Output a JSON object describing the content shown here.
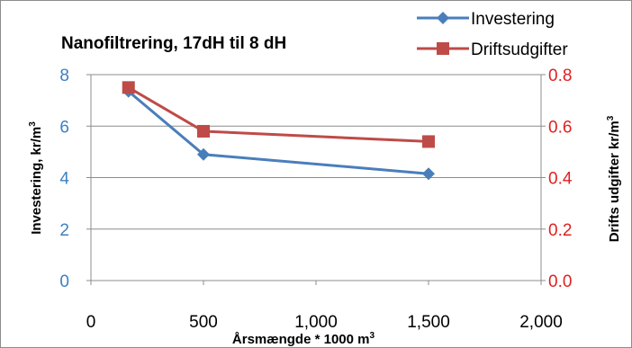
{
  "chart_data": {
    "type": "line",
    "title": "Nanofiltrering,  17dH til 8 dH",
    "xlabel": "Årsmængde * 1000 m",
    "xlabel_sup": "3",
    "ylabel_left": "Investering, kr/m",
    "ylabel_left_sup": "3",
    "ylabel_right": "Drifts udgifter kr/m",
    "ylabel_right_sup": "3",
    "xlim": [
      0,
      2000
    ],
    "ylim_left": [
      0,
      8
    ],
    "ylim_right": [
      0,
      0.8
    ],
    "xticks": [
      "0",
      "500",
      "1,000",
      "1,500",
      "2,000"
    ],
    "yticks_left": [
      "0",
      "2",
      "4",
      "6",
      "8"
    ],
    "yticks_right": [
      "0.0",
      "0.2",
      "0.4",
      "0.6",
      "0.8"
    ],
    "grid": "horizontal",
    "legend_position": "top-right",
    "colors": {
      "left_axis": "#3d7fc4",
      "right_axis": "#e02020",
      "investering": "#4a7ebb",
      "drift": "#be4b48",
      "grid": "#8c8c8c"
    },
    "series": [
      {
        "name": "Investering",
        "axis": "left",
        "marker": "diamond",
        "x": [
          167,
          500,
          1500
        ],
        "y": [
          7.35,
          4.9,
          4.15
        ]
      },
      {
        "name": "Driftsudgifter",
        "axis": "right",
        "marker": "square",
        "x": [
          167,
          500,
          1500
        ],
        "y": [
          0.75,
          0.58,
          0.54
        ]
      }
    ]
  }
}
